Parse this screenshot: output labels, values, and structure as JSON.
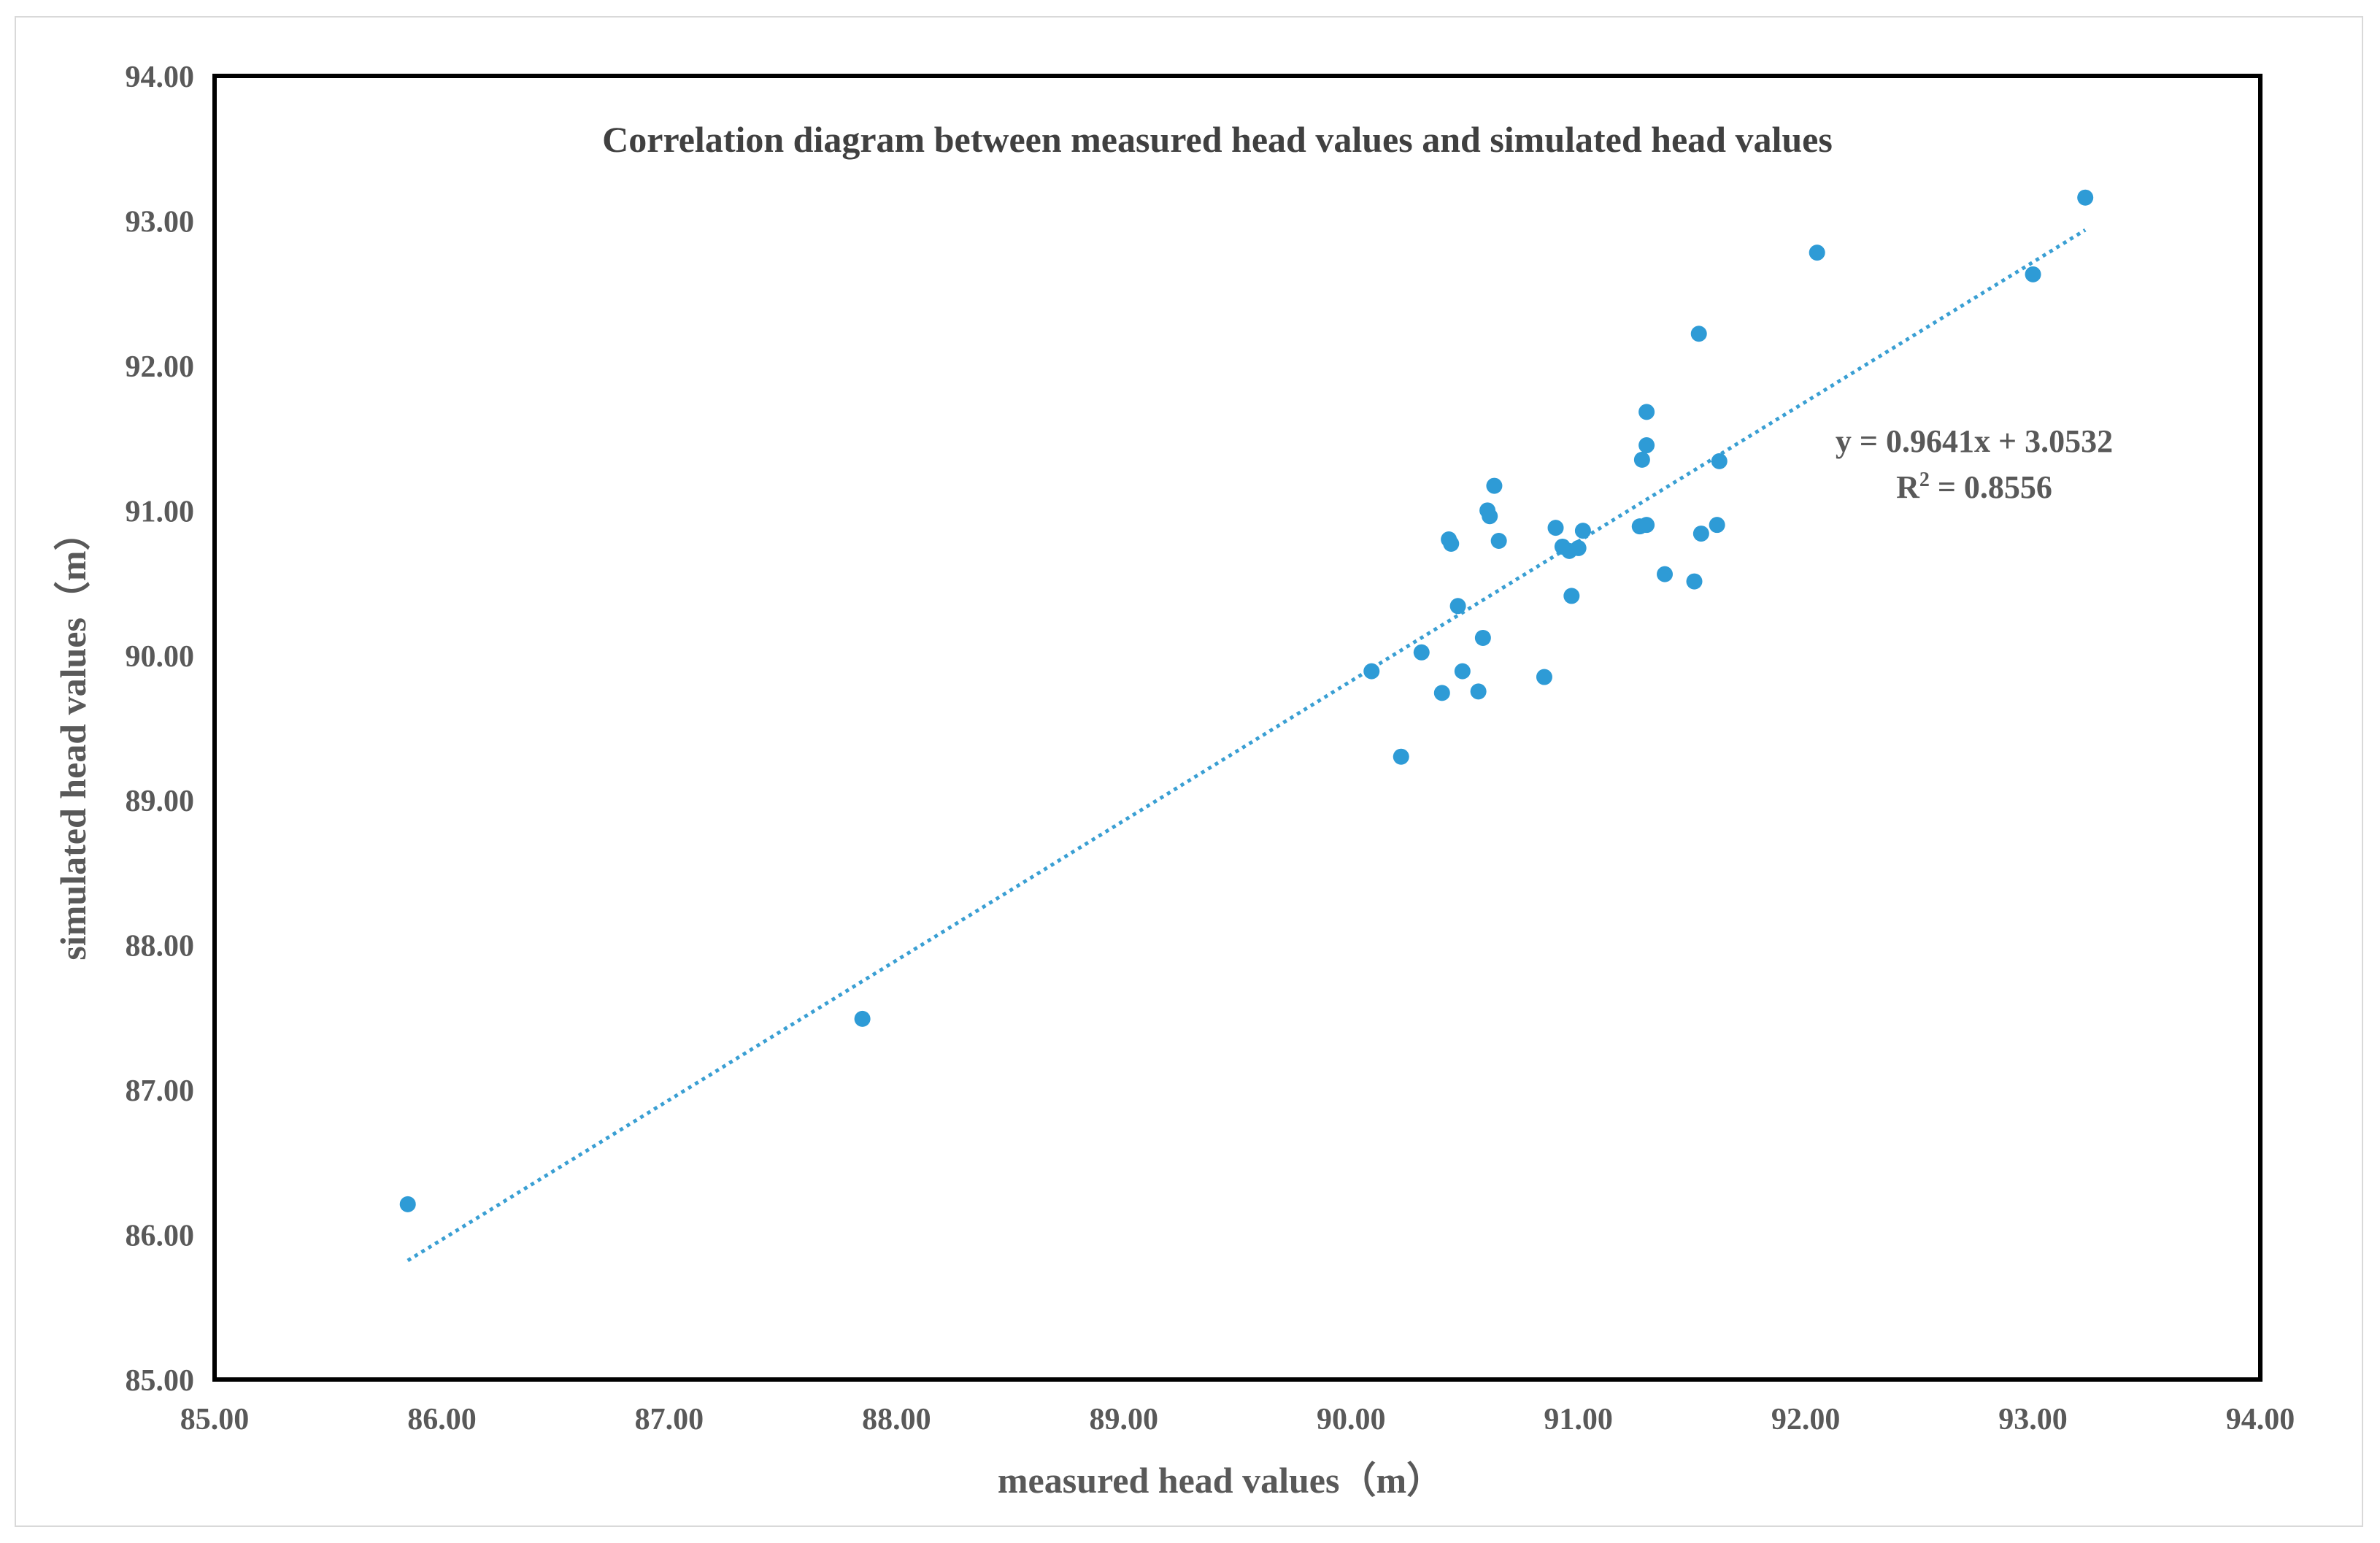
{
  "chart_data": {
    "type": "scatter",
    "title": "Correlation diagram between measured head values and simulated head values",
    "xlabel": "measured head values（m）",
    "ylabel": "simulated head values（m）",
    "xlim": [
      85,
      94
    ],
    "ylim": [
      85,
      94
    ],
    "x_ticks": [
      "85.00",
      "86.00",
      "87.00",
      "88.00",
      "89.00",
      "90.00",
      "91.00",
      "92.00",
      "93.00",
      "94.00"
    ],
    "y_ticks": [
      "85.00",
      "86.00",
      "87.00",
      "88.00",
      "89.00",
      "90.00",
      "91.00",
      "92.00",
      "93.00",
      "94.00"
    ],
    "grid": false,
    "marker_color": "#2e9bd6",
    "trendline_color": "#3a9fd3",
    "series": [
      {
        "name": "points",
        "points": [
          [
            85.85,
            86.21
          ],
          [
            87.85,
            87.49
          ],
          [
            90.09,
            89.89
          ],
          [
            90.22,
            89.3
          ],
          [
            90.31,
            90.02
          ],
          [
            90.4,
            89.74
          ],
          [
            90.43,
            90.8
          ],
          [
            90.44,
            90.77
          ],
          [
            90.47,
            90.34
          ],
          [
            90.49,
            89.89
          ],
          [
            90.56,
            89.75
          ],
          [
            90.58,
            90.12
          ],
          [
            90.6,
            91.0
          ],
          [
            90.61,
            90.96
          ],
          [
            90.63,
            91.17
          ],
          [
            90.65,
            90.79
          ],
          [
            90.85,
            89.85
          ],
          [
            90.9,
            90.88
          ],
          [
            90.93,
            90.75
          ],
          [
            90.96,
            90.72
          ],
          [
            90.97,
            90.41
          ],
          [
            91.0,
            90.74
          ],
          [
            91.02,
            90.86
          ],
          [
            91.27,
            90.89
          ],
          [
            91.28,
            91.35
          ],
          [
            91.3,
            91.68
          ],
          [
            91.3,
            91.45
          ],
          [
            91.3,
            90.9
          ],
          [
            91.38,
            90.56
          ],
          [
            91.51,
            90.51
          ],
          [
            91.53,
            92.22
          ],
          [
            91.54,
            90.84
          ],
          [
            91.61,
            90.9
          ],
          [
            91.62,
            91.34
          ],
          [
            92.05,
            92.78
          ],
          [
            93.0,
            92.63
          ],
          [
            93.23,
            93.16
          ]
        ]
      }
    ],
    "trendline": {
      "equation": "y = 0.9641x + 3.0532",
      "r2_prefix": "R",
      "r2_sup": "2",
      "r2_suffix": " = 0.8556",
      "slope": 0.9641,
      "intercept": 3.0532,
      "x_range": [
        85.85,
        93.23
      ]
    }
  }
}
